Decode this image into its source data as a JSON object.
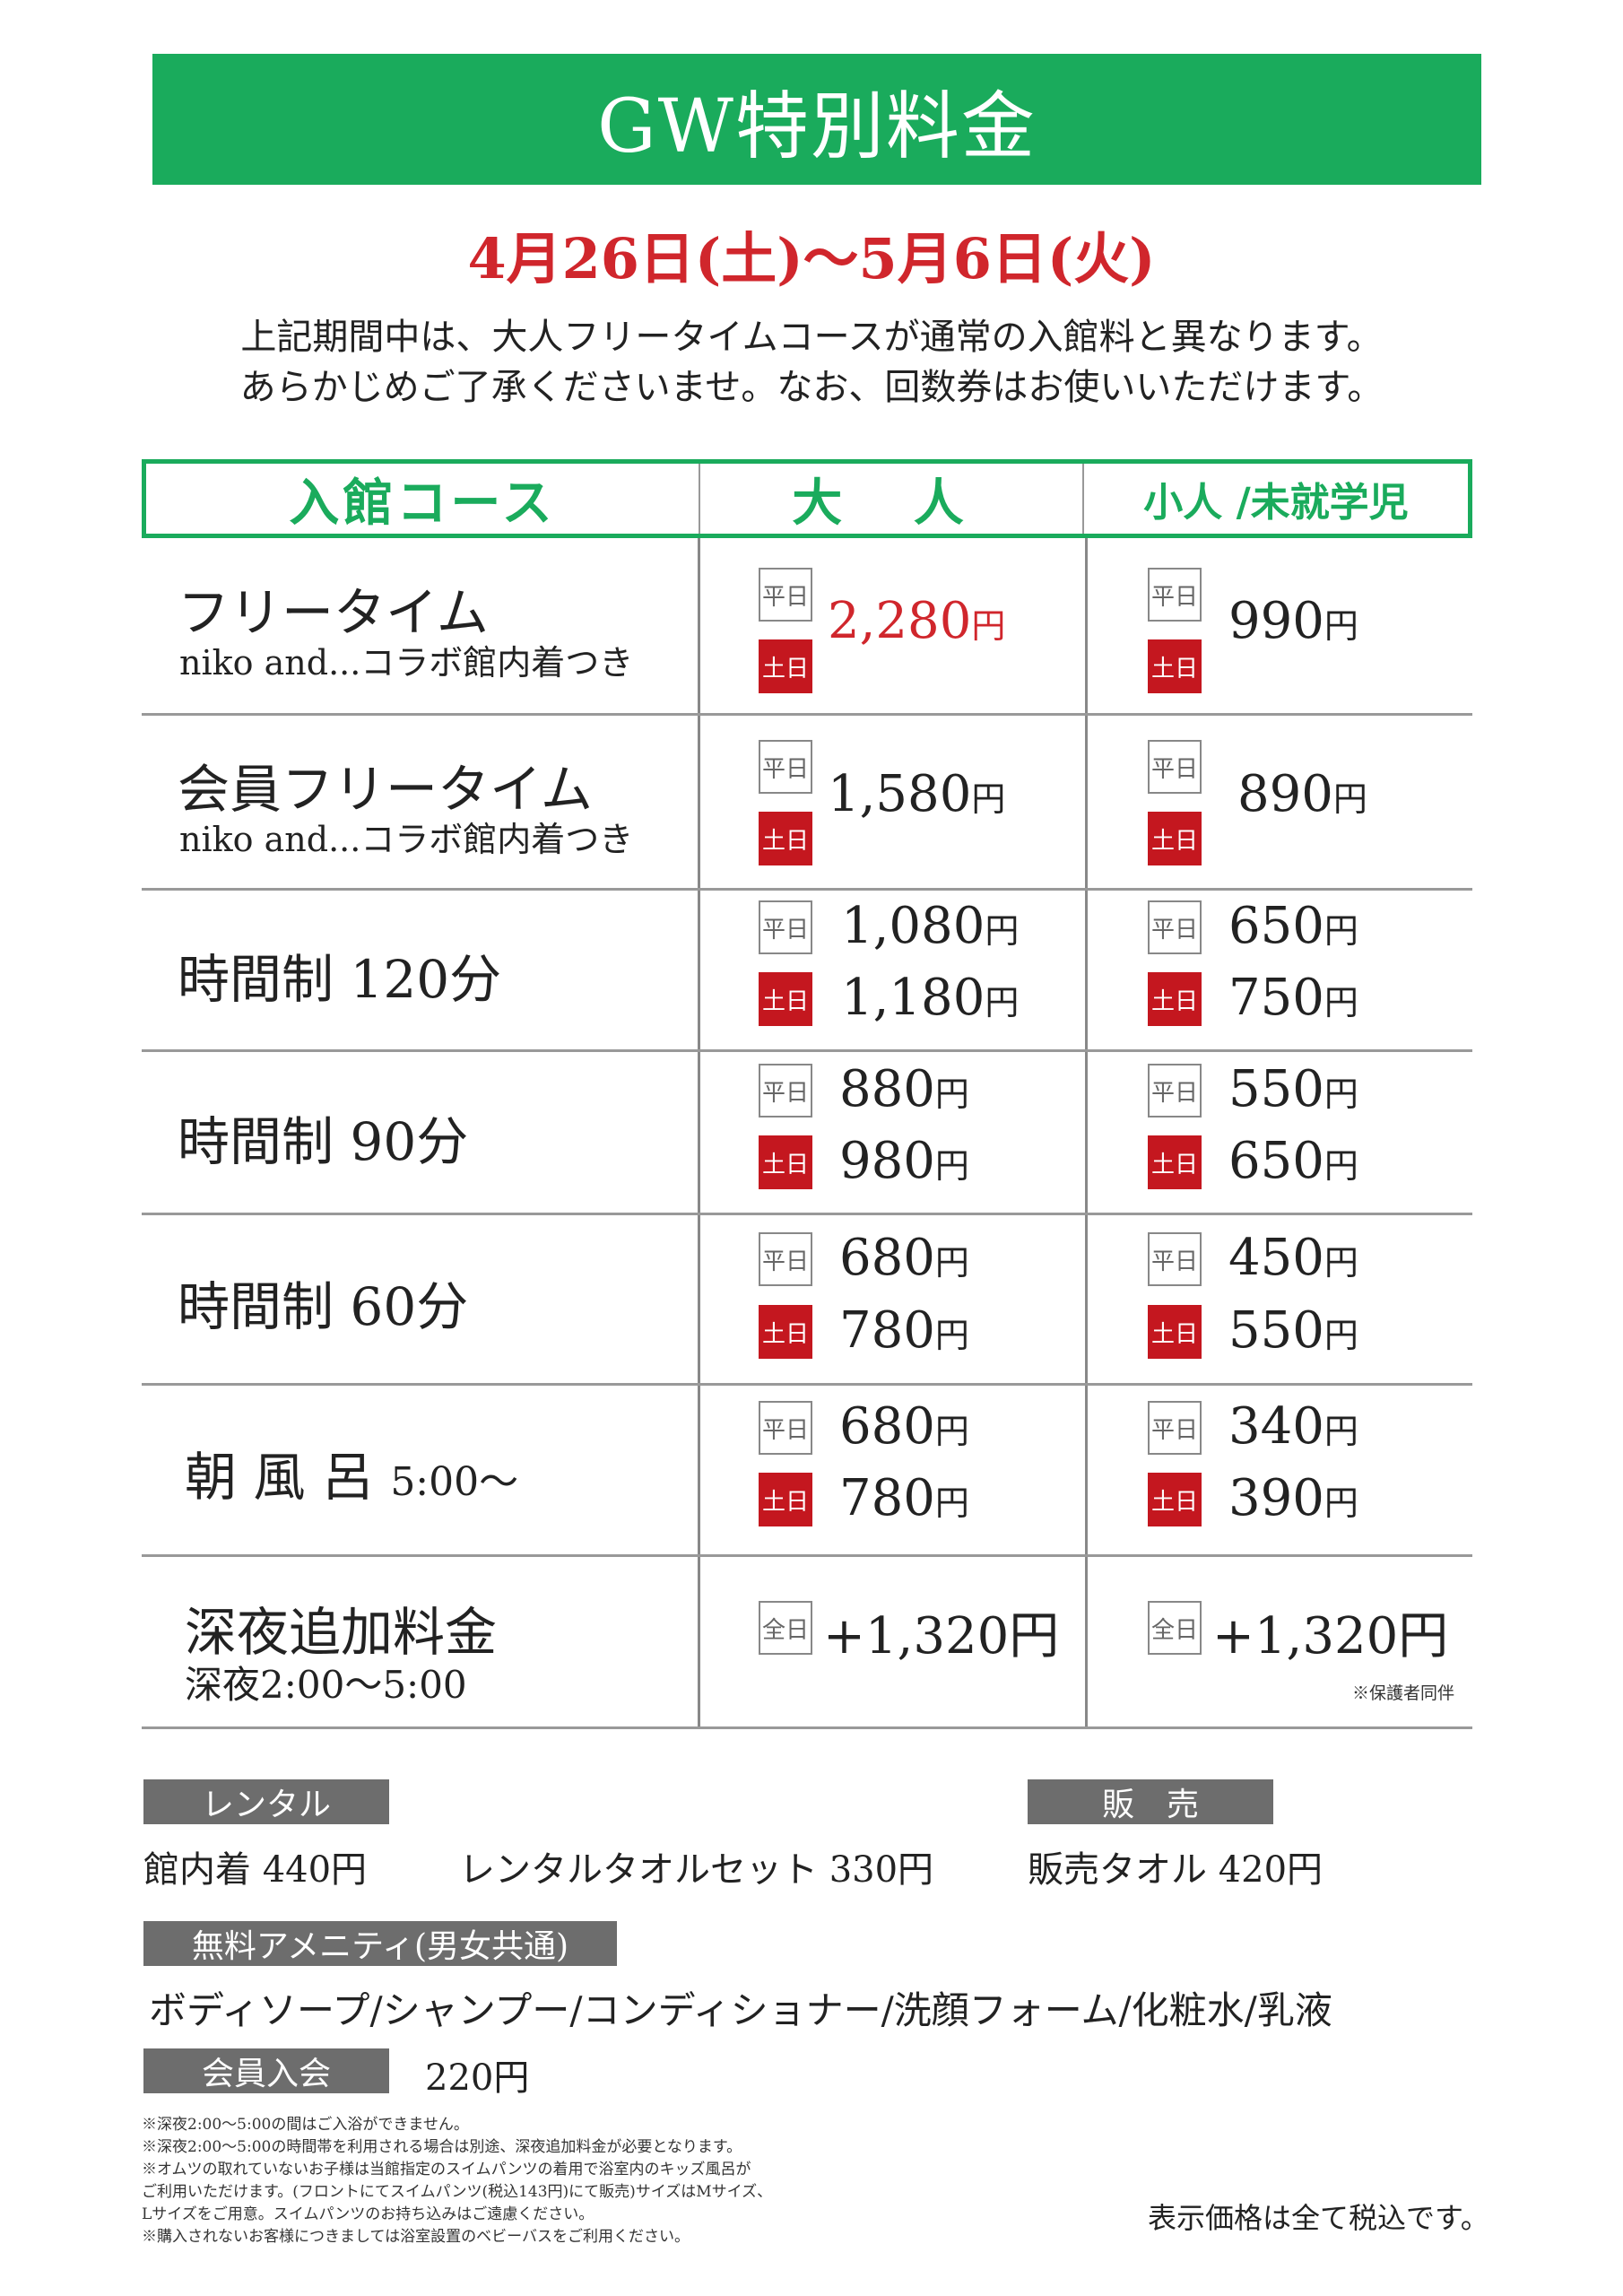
{
  "header": {
    "title": "GW特別料金",
    "period": "4月26日(土)～5月6日(火)",
    "intro_line1": "上記期間中は、大人フリータイムコースが通常の入館料と異なります。",
    "intro_line2": "あらかじめご了承くださいませ。なお、回数券はお使いいただけます。"
  },
  "table": {
    "headers": {
      "course": "入館コース",
      "adult": "大 人",
      "child": "小人 /未就学児"
    },
    "badges": {
      "weekday": "平日",
      "weekend": "土日",
      "allday": "全日"
    },
    "yen": "円",
    "rows": [
      {
        "name": "フリータイム",
        "sub": "niko and...コラボ館内着つき",
        "adult": "2,280",
        "child": "990"
      },
      {
        "name": "会員フリータイム",
        "sub": "niko and...コラボ館内着つき",
        "adult": "1,580",
        "child": "890"
      },
      {
        "name": "時間制 120分",
        "adult_wd": "1,080",
        "adult_we": "1,180",
        "child_wd": "650",
        "child_we": "750"
      },
      {
        "name": "時間制 90分",
        "adult_wd": "880",
        "adult_we": "980",
        "child_wd": "550",
        "child_we": "650"
      },
      {
        "name": "時間制 60分",
        "adult_wd": "680",
        "adult_we": "780",
        "child_wd": "450",
        "child_we": "550"
      },
      {
        "name": "朝 風 呂",
        "time": "5:00～",
        "adult_wd": "680",
        "adult_we": "780",
        "child_wd": "340",
        "child_we": "390"
      },
      {
        "name": "深夜追加料金",
        "sub": "深夜2:00～5:00",
        "adult": "+1,320円",
        "child": "+1,320円",
        "note": "※保護者同伴"
      }
    ]
  },
  "rental": {
    "label": "レンタル",
    "item1": "館内着 440円",
    "item2": "レンタルタオルセット 330円"
  },
  "sale": {
    "label": "販　売",
    "item1": "販売タオル 420円"
  },
  "amenity": {
    "label": "無料アメニティ(男女共通)",
    "items": "ボディソープ/シャンプー/コンディショナー/洗顔フォーム/化粧水/乳液"
  },
  "membership": {
    "label": "会員入会",
    "price": "220円"
  },
  "footnotes": [
    "※深夜2:00～5:00の間はご入浴ができません。",
    "※深夜2:00～5:00の時間帯を利用される場合は別途、深夜追加料金が必要となります。",
    "※オムツの取れていないお子様は当館指定のスイムパンツの着用で浴室内のキッズ風呂が",
    "ご利用いただけます。(フロントにてスイムパンツ(税込143円)にて販売)サイズはMサイズ、",
    "Lサイズをご用意。スイムパンツのお持ち込みはご遠慮ください。",
    "※購入されないお客様につきましては浴室設置のベビーバスをご利用ください。"
  ],
  "tax_note": "表示価格は全て税込です。",
  "colors": {
    "green": "#1aab5c",
    "red": "#d0262c",
    "badge_red": "#c4171f",
    "label_gray": "#6d6d6d"
  }
}
